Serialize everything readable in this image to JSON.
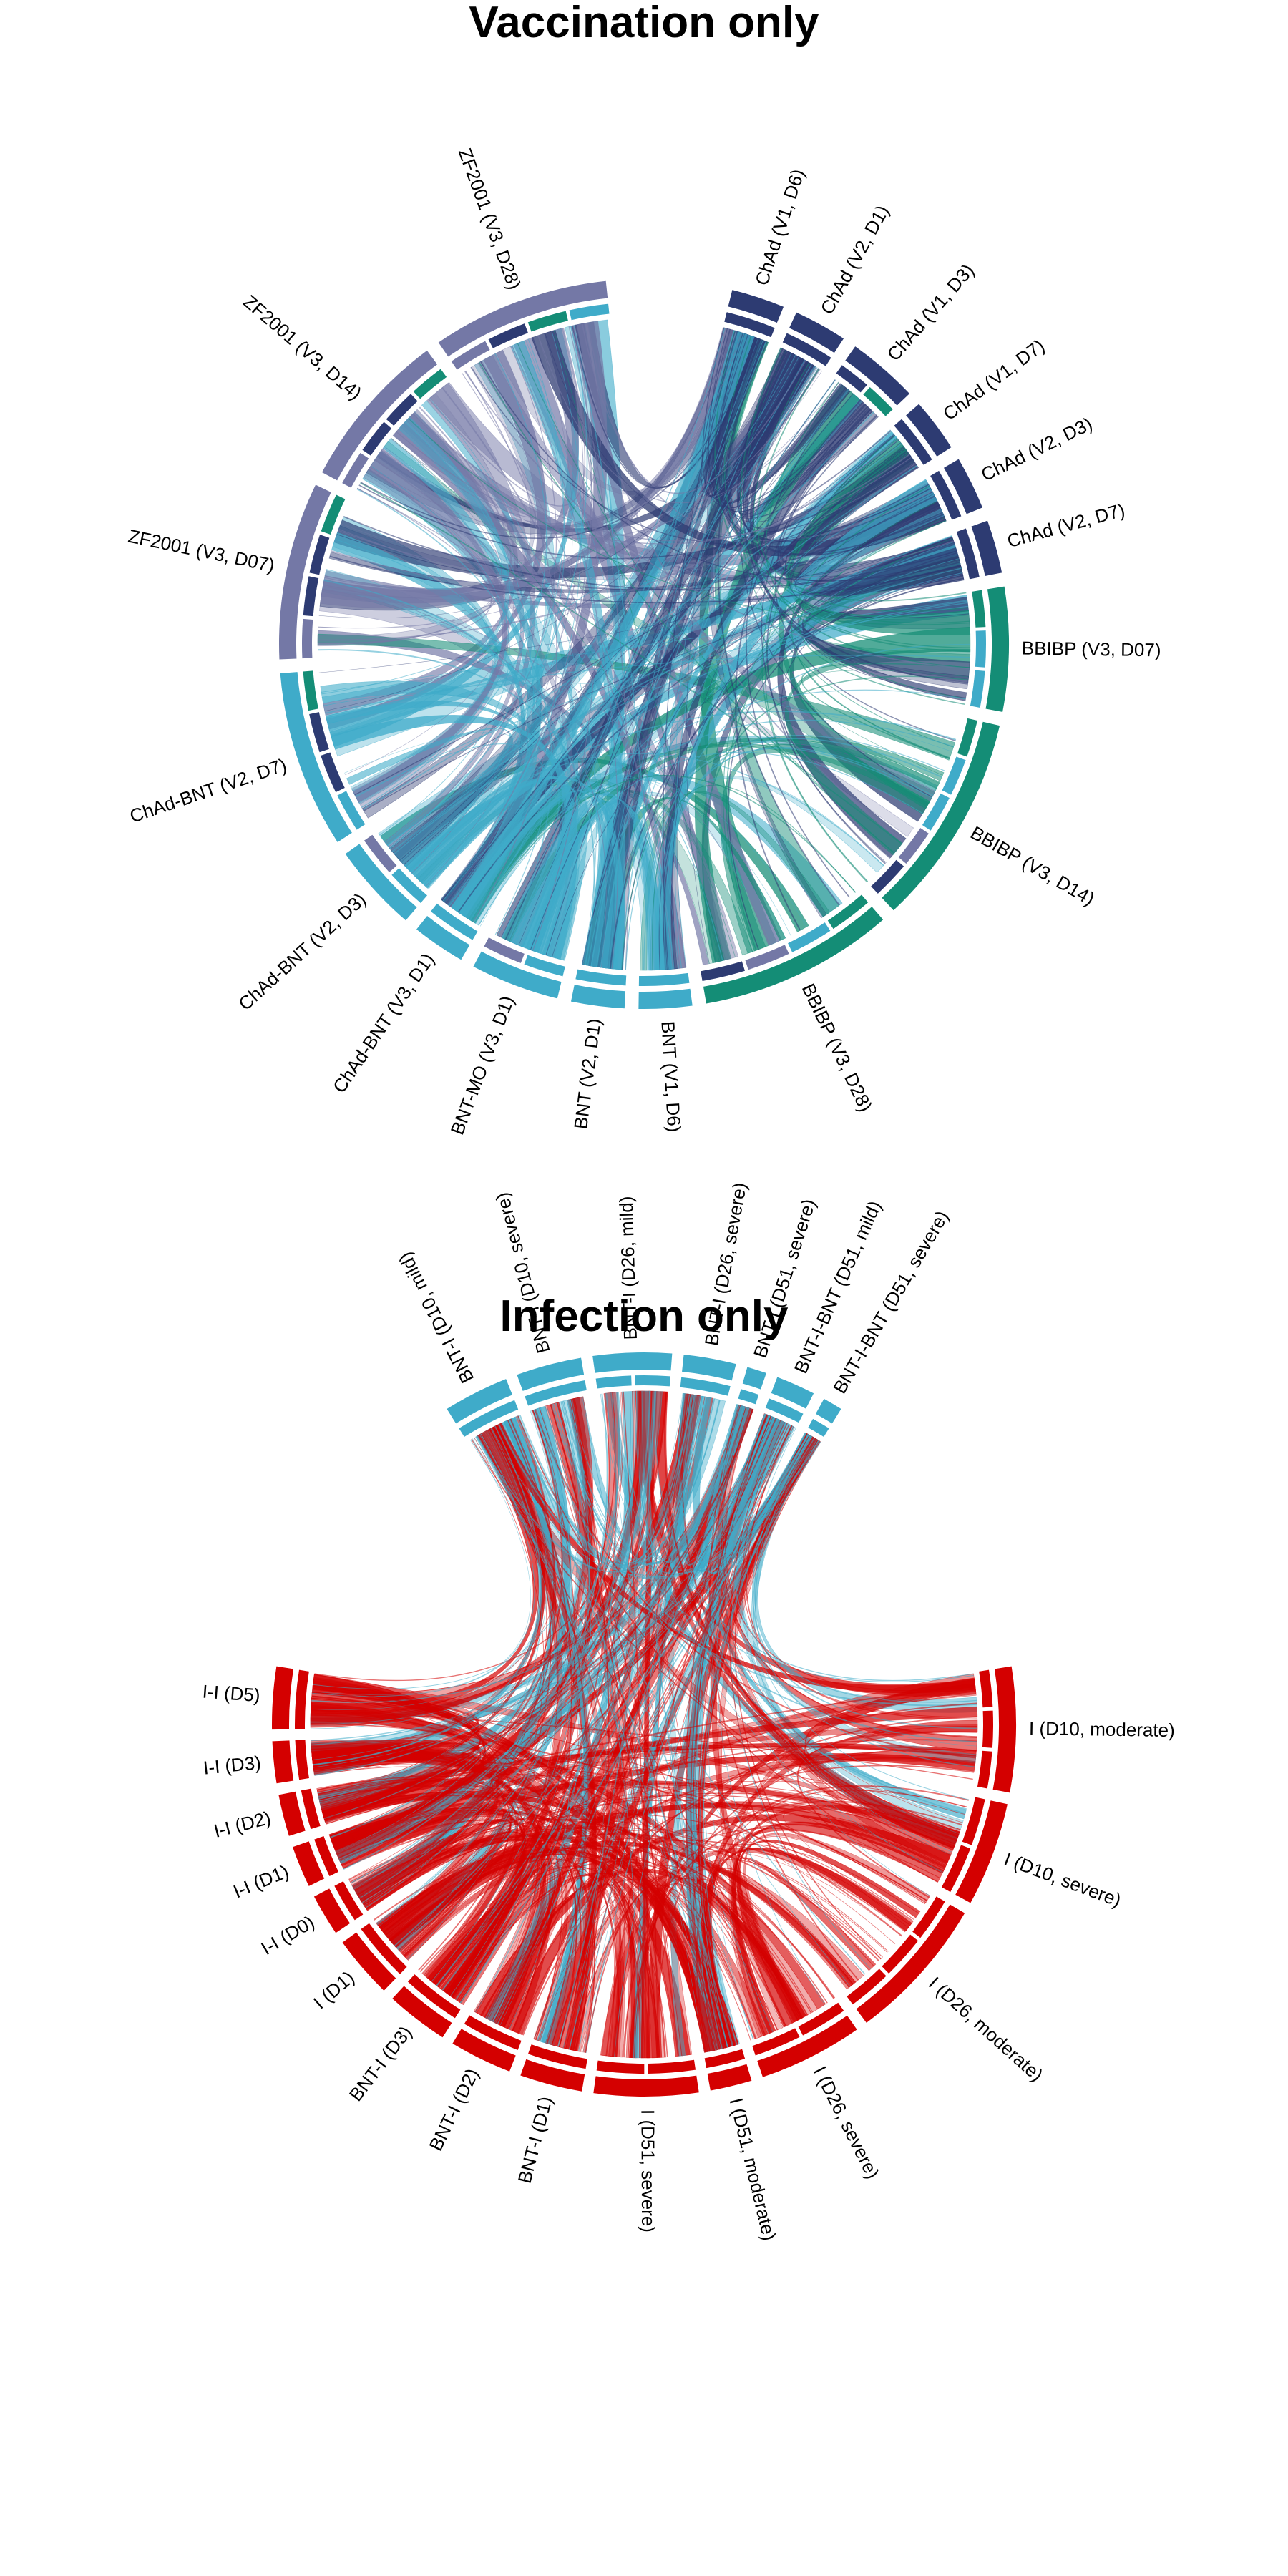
{
  "colors": {
    "chad": "#2d3b72",
    "zf2001": "#7478a6",
    "bnt": "#3fabc9",
    "bbibp": "#148d76",
    "infection": "#d40000"
  },
  "diagrams": [
    {
      "title": "Vaccination only",
      "segments": [
        {
          "label": "ChAd (V1, D6)",
          "group": "chad",
          "size": 3
        },
        {
          "label": "ChAd (V2, D1)",
          "group": "chad",
          "size": 3
        },
        {
          "label": "ChAd (V1, D3)",
          "group": "chad",
          "size": 4
        },
        {
          "label": "ChAd (V1, D7)",
          "group": "chad",
          "size": 3
        },
        {
          "label": "ChAd (V2, D3)",
          "group": "chad",
          "size": 3
        },
        {
          "label": "ChAd (V2, D7)",
          "group": "chad",
          "size": 3
        },
        {
          "label": "BBIBP (V3, D07)",
          "group": "bbibp",
          "size": 7
        },
        {
          "label": "BBIBP (V3, D14)",
          "group": "bbibp",
          "size": 12
        },
        {
          "label": "BBIBP (V3, D28)",
          "group": "bbibp",
          "size": 11
        },
        {
          "label": "BNT (V1, D6)",
          "group": "bnt",
          "size": 3
        },
        {
          "label": "BNT (V2, D1)",
          "group": "bnt",
          "size": 3
        },
        {
          "label": "BNT-MO (V3, D1)",
          "group": "bnt",
          "size": 5
        },
        {
          "label": "ChAd-BNT (V3, D1)",
          "group": "bnt",
          "size": 3
        },
        {
          "label": "ChAd-BNT (V2, D3)",
          "group": "bnt",
          "size": 5
        },
        {
          "label": "ChAd-BNT (V2, D7)",
          "group": "bnt",
          "size": 10
        },
        {
          "label": "ZF2001 (V3, D07)",
          "group": "zf2001",
          "size": 10
        },
        {
          "label": "ZF2001 (V3, D14)",
          "group": "zf2001",
          "size": 9
        },
        {
          "label": "ZF2001 (V3, D28)",
          "group": "zf2001",
          "size": 10
        }
      ]
    },
    {
      "title": "Infection only",
      "segments": [
        {
          "label": "BNT-I (D10, mild)",
          "group": "bnt",
          "size": 5
        },
        {
          "label": "BNT-I (D10, severe)",
          "group": "bnt",
          "size": 5
        },
        {
          "label": "BNT-I (D26, mild)",
          "group": "bnt",
          "size": 6
        },
        {
          "label": "BNT-I (D26, severe)",
          "group": "bnt",
          "size": 4
        },
        {
          "label": "BNT-I (D51, severe)",
          "group": "bnt",
          "size": 1.5
        },
        {
          "label": "BNT-I-BNT (D51, mild)",
          "group": "bnt",
          "size": 3
        },
        {
          "label": "BNT-I-BNT (D51, severe)",
          "group": "bnt",
          "size": 1.5
        },
        {
          "label": "I (D10, moderate)",
          "group": "infection",
          "size": 6
        },
        {
          "label": "I (D10, severe)",
          "group": "infection",
          "size": 5
        },
        {
          "label": "I (D26, moderate)",
          "group": "infection",
          "size": 7
        },
        {
          "label": "I (D26, severe)",
          "group": "infection",
          "size": 5
        },
        {
          "label": "I (D51, moderate)",
          "group": "infection",
          "size": 2
        },
        {
          "label": "I (D51, severe)",
          "group": "infection",
          "size": 5
        },
        {
          "label": "BNT-I (D1)",
          "group": "infection",
          "size": 3
        },
        {
          "label": "BNT-I (D2)",
          "group": "infection",
          "size": 3
        },
        {
          "label": "BNT-I (D3)",
          "group": "infection",
          "size": 3
        },
        {
          "label": "I (D1)",
          "group": "infection",
          "size": 3
        },
        {
          "label": "I-I (D0)",
          "group": "infection",
          "size": 2
        },
        {
          "label": "I-I (D1)",
          "group": "infection",
          "size": 2
        },
        {
          "label": "I-I (D2)",
          "group": "infection",
          "size": 2
        },
        {
          "label": "I-I (D3)",
          "group": "infection",
          "size": 2
        },
        {
          "label": "I-I (D5)",
          "group": "infection",
          "size": 3
        }
      ]
    }
  ]
}
